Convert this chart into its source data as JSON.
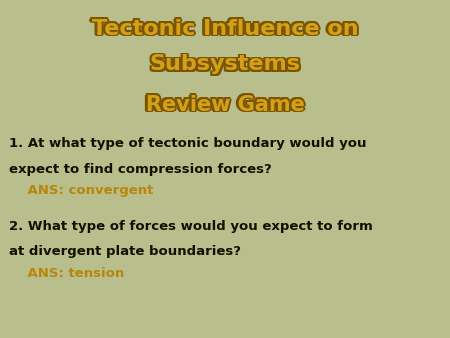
{
  "background_color": "#b8be8c",
  "title_line1": "Tectonic Influence on",
  "title_line2": "Subsystems",
  "subtitle": "Review Game",
  "title_color": "#d4a017",
  "title_outline_color": "#7a5500",
  "subtitle_color": "#d4a017",
  "q1_text_line1": "1. At what type of tectonic boundary would you",
  "q1_text_line2": "expect to find compression forces?",
  "q1_ans": "    ANS: convergent",
  "q2_text_line1": "2. What type of forces would you expect to form",
  "q2_text_line2": "at divergent plate boundaries?",
  "q2_ans": "    ANS: tension",
  "question_color": "#111100",
  "answer_color": "#b8860b",
  "title_fontsize": 16,
  "subtitle_fontsize": 15,
  "question_fontsize": 9.5,
  "answer_fontsize": 9.5
}
